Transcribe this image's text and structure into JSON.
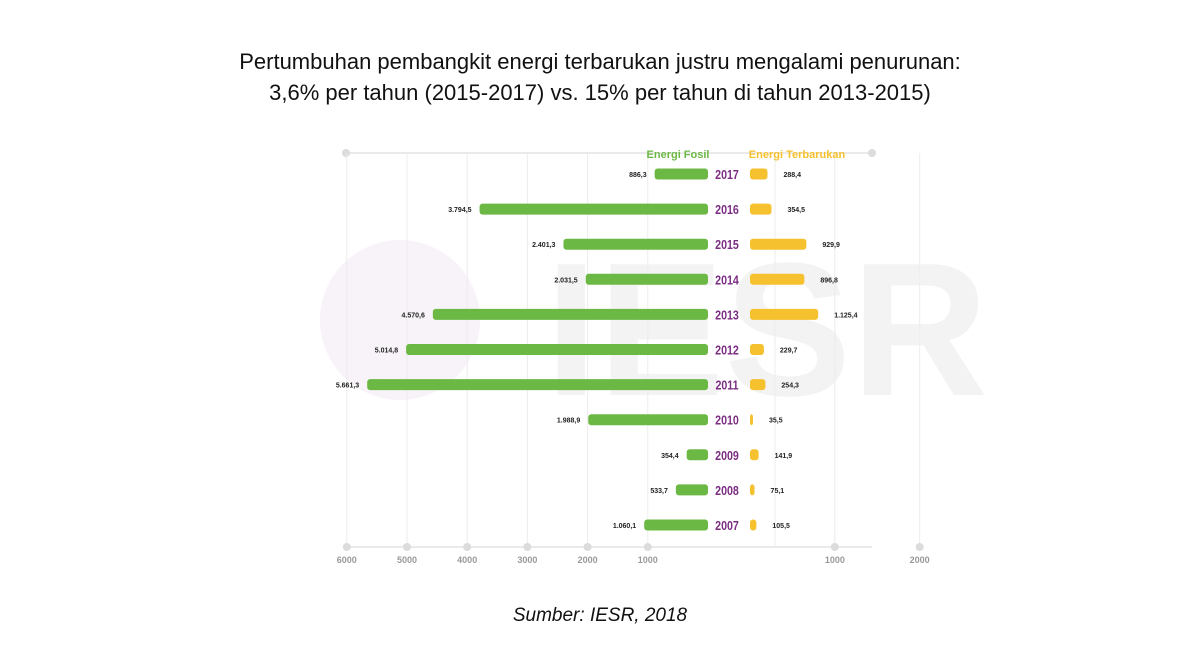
{
  "title": {
    "line1": "Pertumbuhan pembangkit energi terbarukan justru mengalami penurunan:",
    "line2": "3,6% per tahun (2015-2017) vs. 15% per tahun di tahun 2013-2015)"
  },
  "source": "Sumber: IESR, 2018",
  "watermark": "IESR",
  "colors": {
    "fossil": "#6cb844",
    "renewable": "#f6c12e",
    "year": "#7b2d82",
    "legend_fossil": "#6cb844",
    "legend_renewable": "#f6c12e"
  },
  "chart_data": {
    "type": "bar",
    "orientation": "horizontal-diverging",
    "categories": [
      "2017",
      "2016",
      "2015",
      "2014",
      "2013",
      "2012",
      "2011",
      "2010",
      "2009",
      "2008",
      "2007"
    ],
    "series": [
      {
        "name": "Energi Fosil",
        "values": [
          886.3,
          3794.5,
          2401.3,
          2031.5,
          4570.6,
          5014.8,
          5661.3,
          1988.9,
          354.4,
          533.7,
          1060.1
        ],
        "labels": [
          "886,3",
          "3.794,5",
          "2.401,3",
          "2.031,5",
          "4.570,6",
          "5.014,8",
          "5.661,3",
          "1.988,9",
          "354,4",
          "533,7",
          "1.060,1"
        ]
      },
      {
        "name": "Energi Terbarukan",
        "values": [
          288.4,
          354.5,
          929.9,
          896.8,
          1125.4,
          229.7,
          254.3,
          35.5,
          141.9,
          75.1,
          105.5
        ],
        "labels": [
          "288,4",
          "354,5",
          "929,9",
          "896,8",
          "1.125,4",
          "229,7",
          "254,3",
          "35,5",
          "141,9",
          "75,1",
          "105,5"
        ]
      }
    ],
    "left_axis": {
      "ticks": [
        "6000",
        "5000",
        "4000",
        "3000",
        "2000",
        "1000"
      ],
      "range": [
        0,
        6000
      ]
    },
    "right_axis": {
      "ticks": [
        "1000",
        "2000"
      ],
      "range": [
        0,
        2000
      ]
    },
    "legend_position": "top",
    "grid": true
  }
}
